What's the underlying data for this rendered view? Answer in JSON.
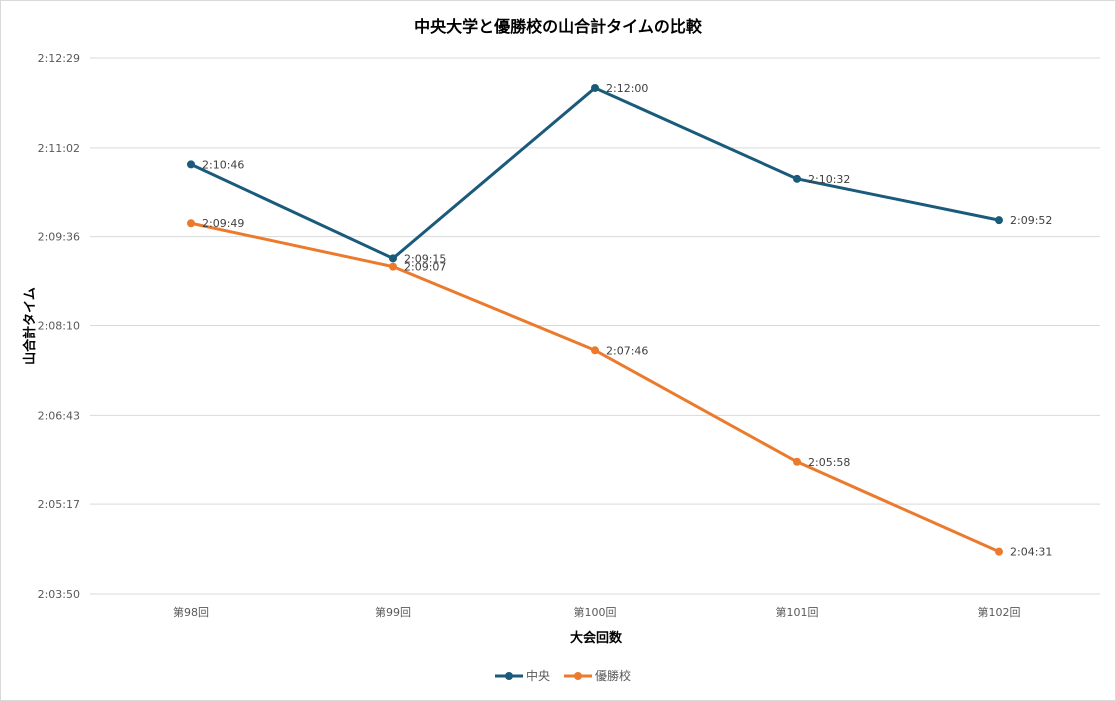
{
  "chart_data": {
    "type": "line",
    "title": "中央大学と優勝校の山合計タイムの比較",
    "xlabel": "大会回数",
    "ylabel": "山合計タイム",
    "categories": [
      "第98回",
      "第99回",
      "第100回",
      "第101回",
      "第102回"
    ],
    "y_ticks": [
      "2:03:50",
      "2:05:17",
      "2:06:43",
      "2:08:10",
      "2:09:36",
      "2:11:02",
      "2:12:29"
    ],
    "ylim": [
      "2:03:50",
      "2:12:29"
    ],
    "grid": true,
    "legend_position": "bottom",
    "series": [
      {
        "name": "中央",
        "color": "#1a5a7a",
        "values": [
          "2:10:46",
          "2:09:15",
          "2:12:00",
          "2:10:32",
          "2:09:52"
        ]
      },
      {
        "name": "優勝校",
        "color": "#ec7a2d",
        "values": [
          "2:09:49",
          "2:09:07",
          "2:07:46",
          "2:05:58",
          "2:04:31"
        ]
      }
    ]
  }
}
